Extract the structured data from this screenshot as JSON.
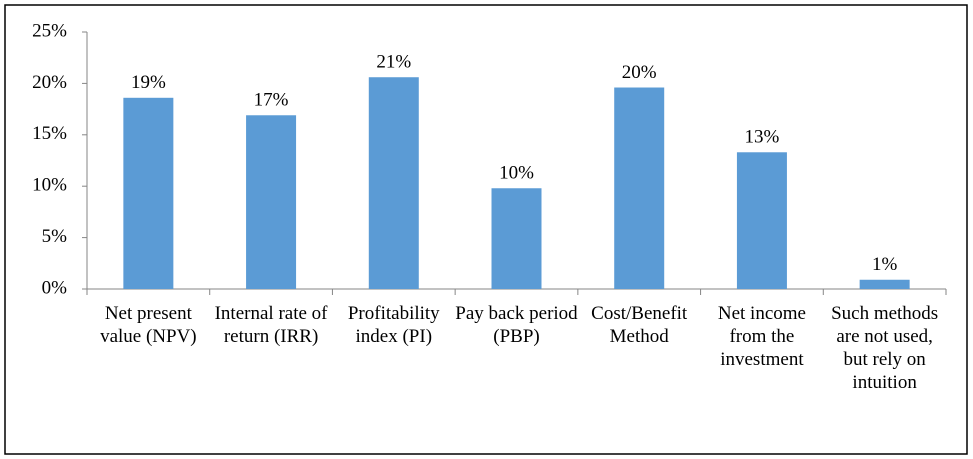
{
  "chart_data": {
    "type": "bar",
    "categories": [
      "Net present value (NPV)",
      "Internal rate of return (IRR)",
      "Profitability index (PI)",
      "Pay back period (PBP)",
      "Cost/Benefit Method",
      "Net income from the investment",
      "Such methods are not used, but rely on intuition"
    ],
    "values": [
      18.6,
      16.9,
      20.6,
      9.8,
      19.6,
      13.3,
      0.9
    ],
    "value_labels": [
      "19%",
      "17%",
      "21%",
      "10%",
      "20%",
      "13%",
      "1%"
    ],
    "color": "#5b9bd5",
    "ylim": [
      0,
      25
    ],
    "yticks": [
      {
        "value": 0,
        "label": "0%"
      },
      {
        "value": 5,
        "label": "5%"
      },
      {
        "value": 10,
        "label": "10%"
      },
      {
        "value": 15,
        "label": "15%"
      },
      {
        "value": 20,
        "label": "20%"
      },
      {
        "value": 25,
        "label": "25%"
      }
    ],
    "grid": false
  }
}
